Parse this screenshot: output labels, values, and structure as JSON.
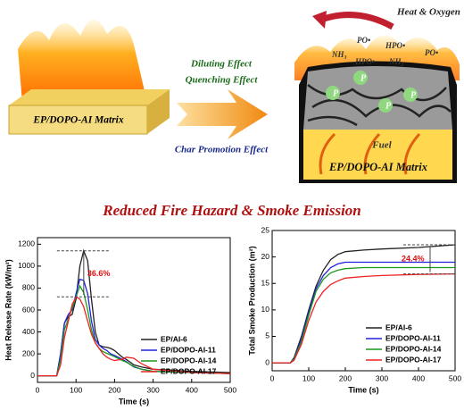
{
  "diagram": {
    "heat_oxygen": "Heat & Oxygen",
    "radicals": [
      "PO•",
      "NH₃",
      "HPO•",
      "HPO•",
      "NH₃",
      "PO•"
    ],
    "p_labels": [
      "P",
      "P",
      "P",
      "P"
    ],
    "effects": [
      "Diluting Effect",
      "Quenching Effect",
      "Char Promotion Effect"
    ],
    "left_matrix": "EP/DOPO-AI Matrix",
    "fuel": "Fuel",
    "right_matrix": "EP/DOPO-AI Matrix",
    "headline": "Reduced Fire Hazard & Smoke Emission"
  },
  "chart_data": [
    {
      "type": "line",
      "xlabel": "Time (s)",
      "ylabel": "Heat Release Rate (kW/m²)",
      "x": [
        0,
        50,
        60,
        70,
        80,
        90,
        100,
        110,
        120,
        130,
        140,
        150,
        160,
        170,
        180,
        190,
        200,
        220,
        230,
        250,
        270,
        300,
        400,
        500
      ],
      "series": [
        {
          "name": "EP/AI-6",
          "color": "#222222",
          "values": [
            0,
            0,
            200,
            480,
            540,
            560,
            700,
            1000,
            1140,
            1050,
            700,
            400,
            280,
            265,
            260,
            250,
            230,
            170,
            150,
            100,
            80,
            60,
            40,
            30
          ]
        },
        {
          "name": "EP/DOPO-AI-11",
          "color": "#2222dd",
          "values": [
            0,
            0,
            200,
            480,
            560,
            600,
            750,
            880,
            870,
            750,
            500,
            330,
            280,
            250,
            230,
            200,
            185,
            150,
            130,
            80,
            60,
            40,
            30,
            20
          ]
        },
        {
          "name": "EP/DOPO-AI-14",
          "color": "#1a9a1a",
          "values": [
            0,
            0,
            150,
            420,
            520,
            620,
            720,
            820,
            760,
            600,
            420,
            300,
            250,
            220,
            205,
            190,
            175,
            140,
            125,
            85,
            60,
            40,
            30,
            20
          ]
        },
        {
          "name": "EP/DOPO-AI-17",
          "color": "#ee2222",
          "values": [
            0,
            0,
            100,
            350,
            500,
            650,
            720,
            700,
            630,
            500,
            380,
            300,
            250,
            200,
            170,
            150,
            140,
            150,
            170,
            160,
            110,
            60,
            30,
            20
          ]
        }
      ],
      "xlim": [
        0,
        500
      ],
      "xticks": [
        0,
        100,
        200,
        300,
        400,
        500
      ],
      "ylim": [
        -60,
        1260
      ],
      "yticks": [
        0,
        200,
        400,
        600,
        800,
        1000,
        1200
      ],
      "legend": "lower right",
      "annotation": "36.6%"
    },
    {
      "type": "line",
      "xlabel": "Time (s)",
      "ylabel": "Total Smoke Production (m²)",
      "x": [
        0,
        50,
        60,
        80,
        100,
        120,
        140,
        160,
        180,
        200,
        250,
        300,
        400,
        500
      ],
      "series": [
        {
          "name": "EP/AI-6",
          "color": "#222222",
          "values": [
            0,
            0,
            1,
            5,
            10,
            14.5,
            17.5,
            19.5,
            20.5,
            21,
            21.3,
            21.5,
            21.8,
            22.3
          ]
        },
        {
          "name": "EP/DOPO-AI-11",
          "color": "#2222dd",
          "values": [
            0,
            0,
            0.8,
            4.5,
            9.5,
            14,
            16.5,
            18,
            18.7,
            19,
            19,
            19,
            19,
            19
          ]
        },
        {
          "name": "EP/DOPO-AI-14",
          "color": "#1a9a1a",
          "values": [
            0,
            0,
            0.7,
            4,
            9,
            13.5,
            15.8,
            17,
            17.5,
            17.8,
            18,
            18,
            18,
            18
          ]
        },
        {
          "name": "EP/DOPO-AI-17",
          "color": "#ee2222",
          "values": [
            0,
            0,
            0.5,
            3.5,
            8,
            11.5,
            13.5,
            14.8,
            15.5,
            16,
            16.3,
            16.5,
            16.7,
            16.8
          ]
        }
      ],
      "xlim": [
        0,
        500
      ],
      "xticks": [
        0,
        100,
        200,
        300,
        400,
        500
      ],
      "ylim": [
        -1.5,
        25
      ],
      "yticks": [
        0,
        5,
        10,
        15,
        20,
        25
      ],
      "legend": "lower right",
      "annotation": "24.4%"
    }
  ]
}
